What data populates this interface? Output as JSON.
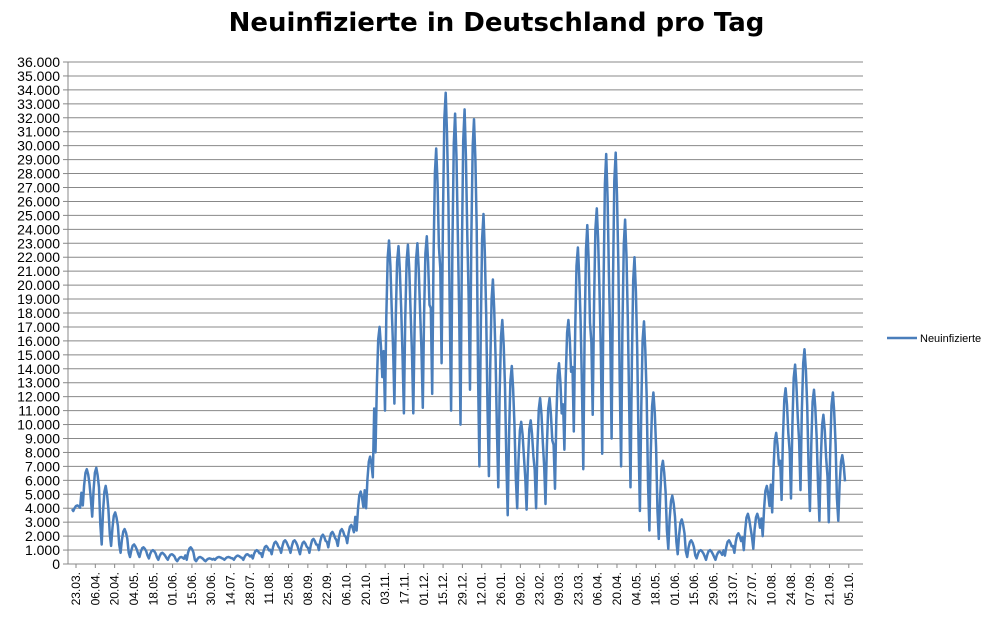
{
  "chart_data": {
    "type": "line",
    "title": "Neuinfizierte in Deutschland pro Tag",
    "xlabel": "",
    "ylabel": "",
    "ylim": [
      0,
      36000
    ],
    "y_ticks": [
      "0",
      "1.000",
      "2.000",
      "3.000",
      "4.000",
      "5.000",
      "6.000",
      "7.000",
      "8.000",
      "9.000",
      "10.000",
      "11.000",
      "12.000",
      "13.000",
      "14.000",
      "15.000",
      "16.000",
      "17.000",
      "18.000",
      "19.000",
      "20.000",
      "21.000",
      "22.000",
      "23.000",
      "24.000",
      "25.000",
      "26.000",
      "27.000",
      "28.000",
      "29.000",
      "30.000",
      "31.000",
      "32.000",
      "33.000",
      "34.000",
      "35.000",
      "36.000"
    ],
    "x_ticks": [
      "23.03.",
      "06.04.",
      "20.04.",
      "04.05.",
      "18.05.",
      "01.06.",
      "15.06.",
      "30.06.",
      "14.07.",
      "28.07.",
      "11.08.",
      "25.08.",
      "08.09.",
      "22.09.",
      "06.10.",
      "20.10.",
      "03.11.",
      "17.11.",
      "01.12.",
      "15.12.",
      "29.12.",
      "12.01.",
      "26.01.",
      "09.02.",
      "23.02.",
      "09.03.",
      "23.03.",
      "06.04.",
      "20.04.",
      "04.05.",
      "18.05.",
      "01.06.",
      "15.06.",
      "29.06.",
      "13.07.",
      "27.07.",
      "10.08.",
      "24.08.",
      "07.09.",
      "21.09.",
      "05.10."
    ],
    "grid": true,
    "legend_position": "right",
    "series": [
      {
        "name": "Neuinfizierte",
        "color": "#4a7ebb",
        "weekly_high": [
          4200,
          6800,
          6900,
          5600,
          3700,
          2500,
          1400,
          1200,
          1000,
          800,
          700,
          500,
          1200,
          500,
          400,
          500,
          500,
          600,
          700,
          1000,
          1300,
          1600,
          1700,
          1700,
          1600,
          1800,
          2100,
          2300,
          2500,
          2800,
          5200,
          7700,
          17000,
          23200,
          22800,
          22900,
          23000,
          23500,
          29800,
          33800,
          32300,
          32600,
          31900,
          25100,
          20400,
          17500,
          14200,
          10200,
          10300,
          11900,
          11900,
          14400,
          17500,
          22700,
          24300,
          25500,
          29400,
          29500,
          24700,
          22000,
          17400,
          12300,
          7400,
          4900,
          3200,
          1700,
          1000,
          1000,
          900,
          1700,
          2200,
          3600,
          3600,
          5600,
          9400,
          12600,
          14300,
          15400,
          12500,
          10700,
          12300,
          7800
        ],
        "weekly_low": [
          3800,
          4200,
          3400,
          1400,
          1300,
          800,
          500,
          500,
          400,
          300,
          300,
          200,
          300,
          200,
          200,
          300,
          300,
          300,
          300,
          400,
          500,
          700,
          800,
          800,
          700,
          800,
          1000,
          1200,
          1300,
          1500,
          2400,
          4000,
          8000,
          11000,
          11500,
          10800,
          10800,
          11200,
          12200,
          14400,
          11000,
          10000,
          12500,
          7000,
          6300,
          5500,
          3500,
          4000,
          3900,
          4000,
          4300,
          5400,
          8200,
          9500,
          6800,
          10700,
          7900,
          9000,
          7000,
          5500,
          3800,
          2400,
          1800,
          1100,
          700,
          500,
          400,
          300,
          300,
          600,
          800,
          1000,
          1100,
          2000,
          3700,
          4600,
          4700,
          5300,
          3800,
          3100,
          3000,
          3100
        ]
      }
    ]
  }
}
